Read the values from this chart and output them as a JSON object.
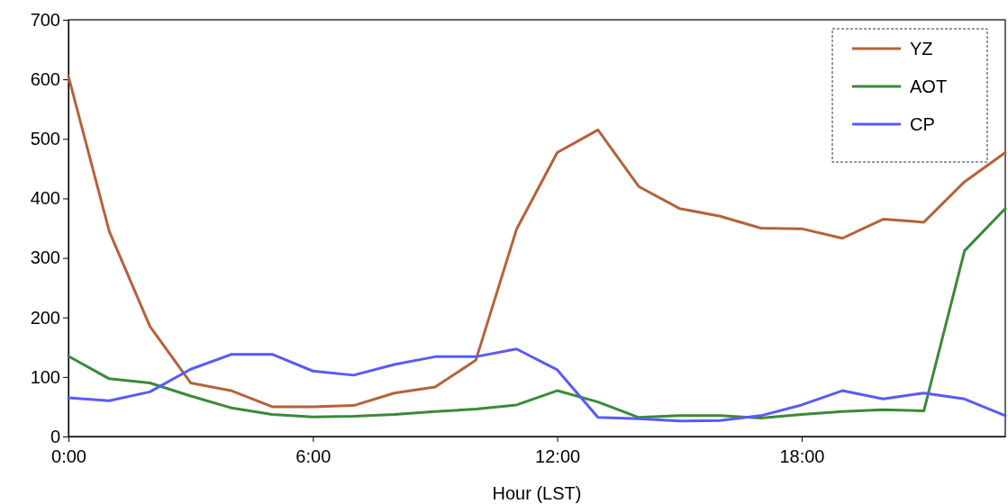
{
  "chart_data": {
    "type": "line",
    "xlabel": "Hour (LST)",
    "x": [
      0,
      1,
      2,
      3,
      4,
      5,
      6,
      7,
      8,
      9,
      10,
      11,
      12,
      13,
      14,
      15,
      16,
      17,
      18,
      19,
      20,
      21,
      22,
      23
    ],
    "xlim": [
      0,
      23
    ],
    "xticks": [
      {
        "value": 0,
        "label": "0:00"
      },
      {
        "value": 6,
        "label": "6:00"
      },
      {
        "value": 12,
        "label": "12:00"
      },
      {
        "value": 18,
        "label": "18:00"
      }
    ],
    "ylim": [
      0,
      700
    ],
    "yticks": [
      0,
      100,
      200,
      300,
      400,
      500,
      600,
      700
    ],
    "grid": false,
    "legend": "top right",
    "marker": "none",
    "line_style": "solid",
    "series": [
      {
        "name": "YZ",
        "color": "#b5623a",
        "values": [
          605,
          345,
          185,
          90,
          77,
          50,
          50,
          52,
          73,
          83,
          128,
          348,
          477,
          515,
          420,
          383,
          370,
          350,
          349,
          333,
          365,
          360,
          428,
          477
        ]
      },
      {
        "name": "AOT",
        "color": "#3a8a3a",
        "values": [
          135,
          97,
          90,
          68,
          48,
          37,
          33,
          34,
          37,
          42,
          46,
          53,
          77,
          58,
          32,
          35,
          35,
          31,
          37,
          42,
          45,
          43,
          312,
          383
        ]
      },
      {
        "name": "CP",
        "color": "#5a5af5",
        "values": [
          65,
          60,
          75,
          113,
          138,
          138,
          110,
          103,
          121,
          134,
          134,
          147,
          112,
          32,
          30,
          26,
          27,
          35,
          53,
          77,
          63,
          73,
          63,
          35
        ]
      }
    ]
  }
}
